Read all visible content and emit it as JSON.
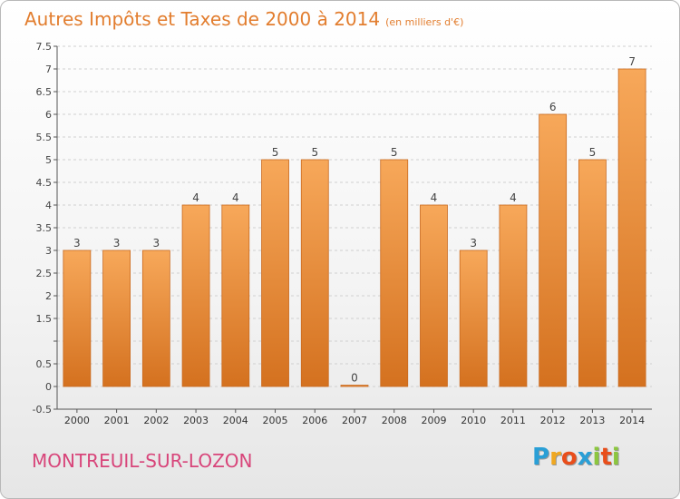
{
  "title": "Autres Impôts et Taxes de 2000 à 2014",
  "unit": "(en milliers d'€)",
  "city": "MONTREUIL-SUR-LOZON",
  "brand": {
    "letters": [
      "P",
      "r",
      "o",
      "x",
      "i",
      "t",
      "i"
    ],
    "colors": [
      "#2a9fd6",
      "#f0a820",
      "#e94e1b",
      "#2a9fd6",
      "#8cc63f",
      "#e94e1b",
      "#8cc63f"
    ]
  },
  "colors": {
    "bar_light": "#f7a85a",
    "bar_dark": "#d4711f",
    "title": "#e27d2e",
    "city": "#d8457a"
  },
  "chart_data": {
    "type": "bar",
    "categories": [
      "2000",
      "2001",
      "2002",
      "2003",
      "2004",
      "2005",
      "2006",
      "2007",
      "2008",
      "2009",
      "2010",
      "2011",
      "2012",
      "2013",
      "2014"
    ],
    "values": [
      3,
      3,
      3,
      4,
      4,
      5,
      5,
      0,
      5,
      4,
      3,
      4,
      6,
      5,
      7
    ],
    "data_labels": [
      "3",
      "3",
      "3",
      "4",
      "4",
      "5",
      "5",
      "0",
      "5",
      "4",
      "3",
      "4",
      "6",
      "5",
      "7"
    ],
    "y_ticks": [
      -0.5,
      0,
      0.5,
      1,
      1.5,
      2,
      2.5,
      3,
      3.5,
      4,
      4.5,
      5,
      5.5,
      6,
      6.5,
      7,
      7.5
    ],
    "y_tick_labels": [
      "-0.5",
      "0",
      "0.5",
      "",
      "1.5",
      "2",
      "2.5",
      "3",
      "3.5",
      "4",
      "4.5",
      "5",
      "5.5",
      "6",
      "6.5",
      "7",
      "7.5"
    ],
    "ylim": [
      -0.5,
      7.5
    ],
    "grid": true,
    "xlabel": "",
    "ylabel": ""
  }
}
